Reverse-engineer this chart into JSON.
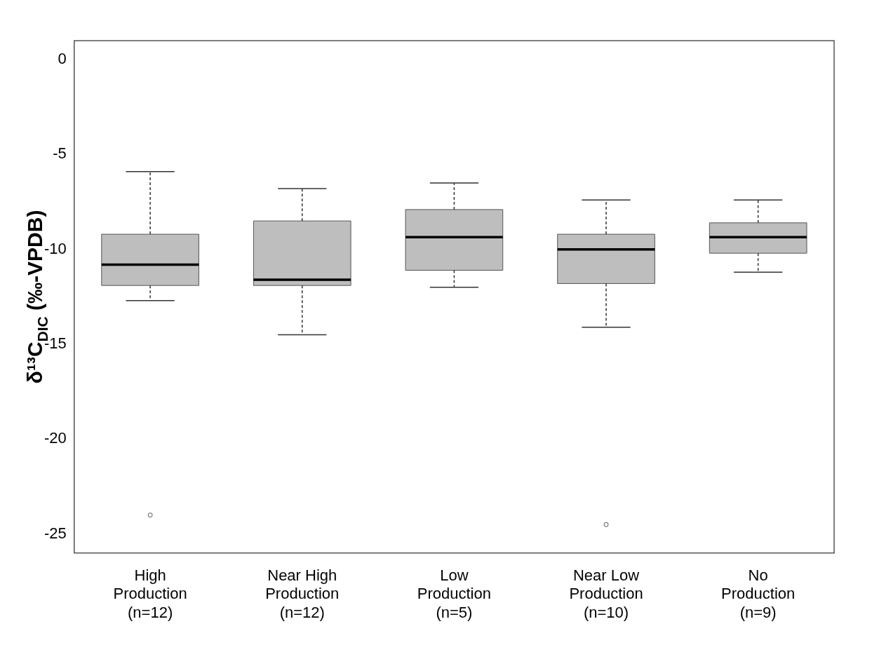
{
  "chart_data": {
    "type": "box",
    "ylabel": "δ¹³C$_{DIC}$ (‰-VPDB)",
    "categories": [
      "High\nProduction\n(n=12)",
      "Near High\nProduction\n(n=12)",
      "Low\nProduction\n(n=5)",
      "Near Low\nProduction\n(n=10)",
      "No\nProduction\n(n=9)"
    ],
    "color": "#bebebe",
    "boxes": [
      {
        "low": -12.7,
        "q1": -11.9,
        "median": -10.8,
        "q3": -9.2,
        "high": -5.9,
        "outliers": [
          -24.0
        ]
      },
      {
        "low": -14.5,
        "q1": -11.9,
        "median": -11.6,
        "q3": -8.5,
        "high": -6.8
      },
      {
        "low": -12.0,
        "q1": -11.1,
        "median": -9.35,
        "q3": -7.9,
        "high": -6.5
      },
      {
        "low": -14.1,
        "q1": -11.8,
        "median": -10.0,
        "q3": -9.2,
        "high": -7.4,
        "outliers": [
          -24.5
        ]
      },
      {
        "low": -11.2,
        "q1": -10.2,
        "median": -9.35,
        "q3": -8.6,
        "high": -7.4
      }
    ],
    "ylim": [
      -26,
      1
    ],
    "yticks": [
      0,
      -5,
      -10,
      -15,
      -20,
      -25
    ]
  }
}
